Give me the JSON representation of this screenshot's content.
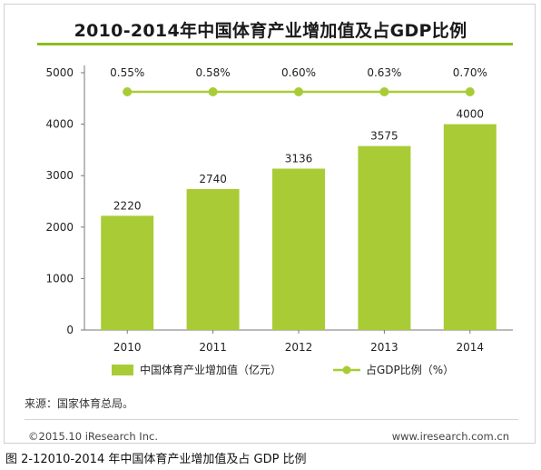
{
  "chart_data": {
    "type": "bar",
    "title": "2010-2014年中国体育产业增加值及占GDP比例",
    "categories": [
      "2010",
      "2011",
      "2012",
      "2013",
      "2014"
    ],
    "y_ticks": [
      "0",
      "1000",
      "2000",
      "3000",
      "4000",
      "5000"
    ],
    "ylim": [
      0,
      5000
    ],
    "grid": false,
    "legend_position": "bottom",
    "series": [
      {
        "name": "中国体育产业增加值（亿元）",
        "kind": "bar",
        "color": "#a9cc36",
        "values": [
          2220,
          2740,
          3136,
          3575,
          4000
        ],
        "labels": [
          "2220",
          "2740",
          "3136",
          "3575",
          "4000"
        ]
      },
      {
        "name": "占GDP比例（%）",
        "kind": "line",
        "color": "#a9cc36",
        "values": [
          0.55,
          0.58,
          0.6,
          0.63,
          0.7
        ],
        "labels": [
          "0.55%",
          "0.58%",
          "0.60%",
          "0.63%",
          "0.70%"
        ]
      }
    ]
  },
  "footer": {
    "source": "来源：国家体育总局。",
    "copyright": "©2015.10 iResearch Inc.",
    "site": "www.iresearch.com.cn"
  },
  "caption": "图 2-12010-2014 年中国体育产业增加值及占 GDP 比例"
}
